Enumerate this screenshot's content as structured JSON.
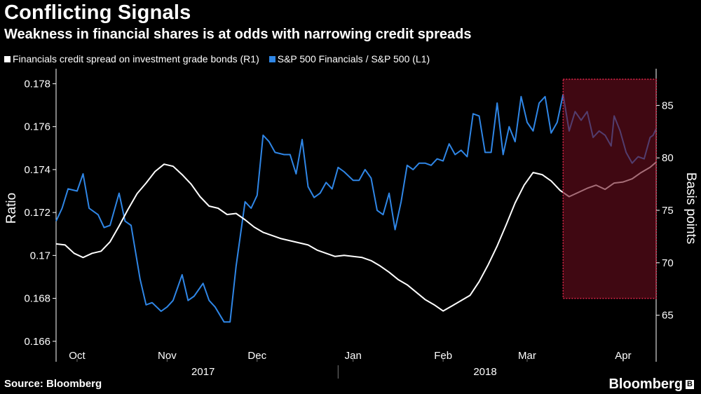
{
  "title": "Conflicting Signals",
  "subtitle": "Weakness in financial shares is at odds with narrowing credit spreads",
  "source": "Source: Bloomberg",
  "brand": "Bloomberg",
  "chart_data": {
    "type": "line",
    "colors": {
      "credit": "#ffffff",
      "ratio": "#2f86e6",
      "highlight_fill": "#6b0e1e",
      "highlight_border": "#e0264a"
    },
    "legend": [
      {
        "label": "Financials credit spread on investment grade bonds (R1)",
        "color": "#ffffff"
      },
      {
        "label": "S&P 500 Financials / S&P 500 (L1)",
        "color": "#2f86e6"
      }
    ],
    "ylabel_left": "Ratio",
    "ylabel_right": "Basis points",
    "y_left": {
      "min": 0.1657,
      "max": 0.1787,
      "ticks": [
        0.166,
        0.168,
        0.17,
        0.172,
        0.174,
        0.176,
        0.178
      ],
      "tick_labels": [
        "0.166",
        "0.168",
        "0.17",
        "0.172",
        "0.174",
        "0.176",
        "0.178"
      ]
    },
    "y_right": {
      "min": 61.9,
      "max": 88.5,
      "ticks": [
        65,
        70,
        75,
        80,
        85
      ],
      "tick_labels": [
        "65",
        "70",
        "75",
        "80",
        "85"
      ]
    },
    "x": {
      "start": "2017-09-25",
      "end": "2018-04-13"
    },
    "month_ticks": [
      {
        "label": "Oct",
        "date": "2017-10-02"
      },
      {
        "label": "Nov",
        "date": "2017-11-01"
      },
      {
        "label": "Dec",
        "date": "2017-12-01"
      },
      {
        "label": "Jan",
        "date": "2018-01-02"
      },
      {
        "label": "Feb",
        "date": "2018-02-01"
      },
      {
        "label": "Mar",
        "date": "2018-03-01"
      },
      {
        "label": "Apr",
        "date": "2018-04-02"
      }
    ],
    "year_labels": [
      {
        "label": "2017",
        "date": "2017-11-13"
      },
      {
        "label": "2018",
        "date": "2018-02-15"
      }
    ],
    "year_divider_date": "2017-12-28",
    "highlight": {
      "from": "2018-03-13",
      "to": "2018-04-13",
      "y_from": 66.6,
      "y_to": 87.5
    },
    "series": [
      {
        "name": "S&P 500 Financials / S&P 500 (L1)",
        "axis": "left",
        "points": [
          [
            "2017-09-25",
            0.1716
          ],
          [
            "2017-09-27",
            0.1722
          ],
          [
            "2017-09-29",
            0.1731
          ],
          [
            "2017-10-02",
            0.173
          ],
          [
            "2017-10-04",
            0.1738
          ],
          [
            "2017-10-06",
            0.1722
          ],
          [
            "2017-10-09",
            0.1719
          ],
          [
            "2017-10-11",
            0.1713
          ],
          [
            "2017-10-13",
            0.1714
          ],
          [
            "2017-10-16",
            0.1729
          ],
          [
            "2017-10-18",
            0.1716
          ],
          [
            "2017-10-20",
            0.1714
          ],
          [
            "2017-10-23",
            0.1689
          ],
          [
            "2017-10-25",
            0.1677
          ],
          [
            "2017-10-27",
            0.1678
          ],
          [
            "2017-10-30",
            0.1674
          ],
          [
            "2017-11-01",
            0.1676
          ],
          [
            "2017-11-03",
            0.1679
          ],
          [
            "2017-11-06",
            0.1691
          ],
          [
            "2017-11-08",
            0.1679
          ],
          [
            "2017-11-10",
            0.1681
          ],
          [
            "2017-11-13",
            0.1687
          ],
          [
            "2017-11-15",
            0.1679
          ],
          [
            "2017-11-17",
            0.1676
          ],
          [
            "2017-11-20",
            0.1669
          ],
          [
            "2017-11-22",
            0.1669
          ],
          [
            "2017-11-24",
            0.1695
          ],
          [
            "2017-11-27",
            0.1725
          ],
          [
            "2017-11-29",
            0.1722
          ],
          [
            "2017-12-01",
            0.1728
          ],
          [
            "2017-12-03",
            0.1756
          ],
          [
            "2017-12-05",
            0.1753
          ],
          [
            "2017-12-07",
            0.1748
          ],
          [
            "2017-12-10",
            0.1747
          ],
          [
            "2017-12-12",
            0.1747
          ],
          [
            "2017-12-14",
            0.1738
          ],
          [
            "2017-12-16",
            0.1754
          ],
          [
            "2017-12-18",
            0.1732
          ],
          [
            "2017-12-20",
            0.1727
          ],
          [
            "2017-12-22",
            0.1729
          ],
          [
            "2017-12-24",
            0.1734
          ],
          [
            "2017-12-26",
            0.1731
          ],
          [
            "2017-12-28",
            0.1741
          ],
          [
            "2017-12-30",
            0.1739
          ],
          [
            "2018-01-02",
            0.1735
          ],
          [
            "2018-01-04",
            0.1735
          ],
          [
            "2018-01-06",
            0.174
          ],
          [
            "2018-01-08",
            0.1736
          ],
          [
            "2018-01-10",
            0.1721
          ],
          [
            "2018-01-12",
            0.1719
          ],
          [
            "2018-01-14",
            0.1729
          ],
          [
            "2018-01-16",
            0.1712
          ],
          [
            "2018-01-18",
            0.1725
          ],
          [
            "2018-01-20",
            0.1742
          ],
          [
            "2018-01-22",
            0.174
          ],
          [
            "2018-01-24",
            0.1743
          ],
          [
            "2018-01-26",
            0.1743
          ],
          [
            "2018-01-28",
            0.1742
          ],
          [
            "2018-01-30",
            0.1745
          ],
          [
            "2018-02-01",
            0.1744
          ],
          [
            "2018-02-03",
            0.1752
          ],
          [
            "2018-02-05",
            0.1747
          ],
          [
            "2018-02-07",
            0.1749
          ],
          [
            "2018-02-09",
            0.1746
          ],
          [
            "2018-02-11",
            0.1766
          ],
          [
            "2018-02-13",
            0.1765
          ],
          [
            "2018-02-15",
            0.1748
          ],
          [
            "2018-02-17",
            0.1748
          ],
          [
            "2018-02-19",
            0.1771
          ],
          [
            "2018-02-21",
            0.1747
          ],
          [
            "2018-02-23",
            0.176
          ],
          [
            "2018-02-25",
            0.1753
          ],
          [
            "2018-02-27",
            0.1774
          ],
          [
            "2018-03-01",
            0.1762
          ],
          [
            "2018-03-03",
            0.1758
          ],
          [
            "2018-03-05",
            0.1771
          ],
          [
            "2018-03-07",
            0.1774
          ],
          [
            "2018-03-09",
            0.1757
          ],
          [
            "2018-03-11",
            0.1762
          ],
          [
            "2018-03-13",
            0.1775
          ],
          [
            "2018-03-15",
            0.1758
          ],
          [
            "2018-03-17",
            0.1767
          ],
          [
            "2018-03-19",
            0.1763
          ],
          [
            "2018-03-21",
            0.1767
          ],
          [
            "2018-03-23",
            0.1755
          ],
          [
            "2018-03-25",
            0.1758
          ],
          [
            "2018-03-27",
            0.1756
          ],
          [
            "2018-03-29",
            0.1751
          ],
          [
            "2018-03-30",
            0.1765
          ],
          [
            "2018-04-01",
            0.1758
          ],
          [
            "2018-04-03",
            0.1748
          ],
          [
            "2018-04-05",
            0.1743
          ],
          [
            "2018-04-07",
            0.1746
          ],
          [
            "2018-04-09",
            0.1745
          ],
          [
            "2018-04-11",
            0.1755
          ],
          [
            "2018-04-12",
            0.1756
          ],
          [
            "2018-04-13",
            0.1759
          ]
        ]
      },
      {
        "name": "Financials credit spread on investment grade bonds (R1)",
        "axis": "right",
        "points": [
          [
            "2017-09-25",
            71.8
          ],
          [
            "2017-09-28",
            71.7
          ],
          [
            "2017-10-01",
            70.9
          ],
          [
            "2017-10-04",
            70.5
          ],
          [
            "2017-10-07",
            70.9
          ],
          [
            "2017-10-10",
            71.1
          ],
          [
            "2017-10-13",
            72.0
          ],
          [
            "2017-10-16",
            73.5
          ],
          [
            "2017-10-19",
            75.1
          ],
          [
            "2017-10-22",
            76.6
          ],
          [
            "2017-10-25",
            77.6
          ],
          [
            "2017-10-28",
            78.7
          ],
          [
            "2017-10-31",
            79.4
          ],
          [
            "2017-11-03",
            79.2
          ],
          [
            "2017-11-06",
            78.4
          ],
          [
            "2017-11-09",
            77.5
          ],
          [
            "2017-11-12",
            76.3
          ],
          [
            "2017-11-15",
            75.4
          ],
          [
            "2017-11-18",
            75.2
          ],
          [
            "2017-11-21",
            74.6
          ],
          [
            "2017-11-24",
            74.7
          ],
          [
            "2017-11-27",
            74.1
          ],
          [
            "2017-11-30",
            73.4
          ],
          [
            "2017-12-03",
            72.9
          ],
          [
            "2017-12-06",
            72.6
          ],
          [
            "2017-12-09",
            72.3
          ],
          [
            "2017-12-12",
            72.1
          ],
          [
            "2017-12-15",
            71.9
          ],
          [
            "2017-12-18",
            71.7
          ],
          [
            "2017-12-21",
            71.2
          ],
          [
            "2017-12-24",
            70.9
          ],
          [
            "2017-12-27",
            70.6
          ],
          [
            "2017-12-30",
            70.7
          ],
          [
            "2018-01-02",
            70.6
          ],
          [
            "2018-01-05",
            70.5
          ],
          [
            "2018-01-08",
            70.2
          ],
          [
            "2018-01-11",
            69.7
          ],
          [
            "2018-01-14",
            69.1
          ],
          [
            "2018-01-17",
            68.4
          ],
          [
            "2018-01-20",
            67.9
          ],
          [
            "2018-01-23",
            67.2
          ],
          [
            "2018-01-26",
            66.5
          ],
          [
            "2018-01-29",
            66.0
          ],
          [
            "2018-02-01",
            65.4
          ],
          [
            "2018-02-04",
            65.9
          ],
          [
            "2018-02-07",
            66.4
          ],
          [
            "2018-02-10",
            66.9
          ],
          [
            "2018-02-13",
            68.2
          ],
          [
            "2018-02-16",
            69.8
          ],
          [
            "2018-02-19",
            71.6
          ],
          [
            "2018-02-22",
            73.6
          ],
          [
            "2018-02-25",
            75.7
          ],
          [
            "2018-02-28",
            77.4
          ],
          [
            "2018-03-03",
            78.6
          ],
          [
            "2018-03-06",
            78.4
          ],
          [
            "2018-03-09",
            77.8
          ],
          [
            "2018-03-12",
            76.9
          ],
          [
            "2018-03-15",
            76.3
          ],
          [
            "2018-03-18",
            76.7
          ],
          [
            "2018-03-21",
            77.1
          ],
          [
            "2018-03-24",
            77.4
          ],
          [
            "2018-03-27",
            77.0
          ],
          [
            "2018-03-30",
            77.6
          ],
          [
            "2018-04-02",
            77.7
          ],
          [
            "2018-04-05",
            78.0
          ],
          [
            "2018-04-08",
            78.6
          ],
          [
            "2018-04-11",
            79.1
          ],
          [
            "2018-04-13",
            79.6
          ]
        ]
      }
    ]
  }
}
